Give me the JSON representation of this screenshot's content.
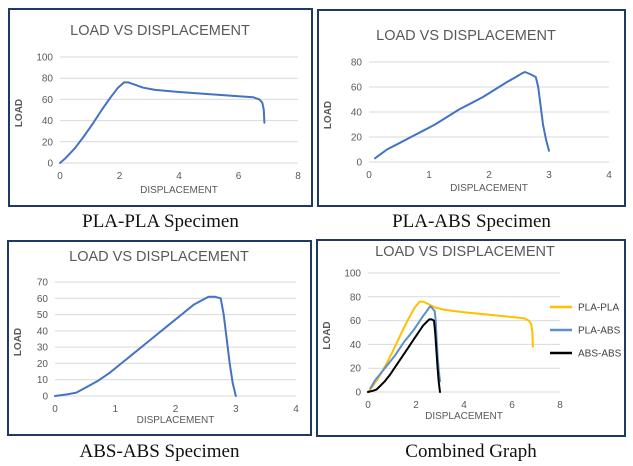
{
  "chart_data": [
    {
      "type": "line",
      "title": "LOAD VS DISPLACEMENT",
      "xlabel": "DISPLACEMENT",
      "ylabel": "LOAD",
      "xlim": [
        0,
        8
      ],
      "ylim": [
        0,
        100
      ],
      "xticks": [
        0,
        2,
        4,
        6,
        8
      ],
      "yticks": [
        0,
        20,
        40,
        60,
        80,
        100
      ],
      "grid": true,
      "caption": "PLA-PLA Specimen",
      "series": [
        {
          "color": "#4472c4",
          "x": [
            0,
            0.2,
            0.5,
            0.8,
            1.1,
            1.4,
            1.7,
            1.95,
            2.15,
            2.3,
            2.5,
            2.8,
            3.2,
            4,
            5,
            6,
            6.5,
            6.7,
            6.8,
            6.85,
            6.87
          ],
          "y": [
            0,
            5,
            14,
            25,
            37,
            50,
            62,
            71,
            76,
            76,
            74,
            71,
            69,
            67,
            65,
            63,
            62,
            60,
            57,
            50,
            38
          ]
        }
      ]
    },
    {
      "type": "line",
      "title": "LOAD VS DISPLACEMENT",
      "xlabel": "DISPLACEMENT",
      "ylabel": "LOAD",
      "xlim": [
        0,
        4
      ],
      "ylim": [
        0,
        80
      ],
      "xticks": [
        0,
        1,
        2,
        3,
        4
      ],
      "yticks": [
        0,
        20,
        40,
        60,
        80
      ],
      "grid": true,
      "caption": "PLA-ABS Specimen",
      "series": [
        {
          "color": "#4472c4",
          "x": [
            0.1,
            0.3,
            0.5,
            0.7,
            0.9,
            1.1,
            1.3,
            1.5,
            1.7,
            1.9,
            2.1,
            2.3,
            2.45,
            2.55,
            2.6,
            2.7,
            2.78,
            2.82,
            2.86,
            2.9,
            2.95,
            3.0
          ],
          "y": [
            3,
            10,
            15,
            20,
            25,
            30,
            36,
            42,
            47,
            52,
            58,
            64,
            68,
            71,
            72,
            70,
            68,
            60,
            45,
            30,
            18,
            9
          ]
        }
      ]
    },
    {
      "type": "line",
      "title": "LOAD VS DISPLACEMENT",
      "xlabel": "DISPLACEMENT",
      "ylabel": "LOAD",
      "xlim": [
        0,
        4
      ],
      "ylim": [
        0,
        70
      ],
      "xticks": [
        0,
        1,
        2,
        3,
        4
      ],
      "yticks": [
        0,
        10,
        20,
        30,
        40,
        50,
        60,
        70
      ],
      "grid": true,
      "caption": "ABS-ABS Specimen",
      "series": [
        {
          "color": "#4472c4",
          "x": [
            0,
            0.2,
            0.35,
            0.5,
            0.7,
            0.9,
            1.1,
            1.3,
            1.5,
            1.7,
            1.9,
            2.1,
            2.3,
            2.45,
            2.55,
            2.65,
            2.75,
            2.8,
            2.85,
            2.9,
            2.95,
            3.0
          ],
          "y": [
            0,
            1,
            2,
            5,
            9,
            14,
            20,
            26,
            32,
            38,
            44,
            50,
            56,
            59,
            61,
            61,
            60,
            50,
            35,
            20,
            8,
            0
          ]
        }
      ]
    },
    {
      "type": "line",
      "title": "LOAD VS DISPLACEMENT",
      "xlabel": "DISPLACEMENT",
      "ylabel": "LOAD",
      "xlim": [
        0,
        8
      ],
      "ylim": [
        0,
        100
      ],
      "xticks": [
        0,
        2,
        4,
        6,
        8
      ],
      "yticks": [
        0,
        20,
        40,
        60,
        80,
        100
      ],
      "grid": true,
      "legend": "right",
      "caption": "Combined Graph",
      "series": [
        {
          "name": "PLA-PLA",
          "color": "#ffc000",
          "x": [
            0,
            0.2,
            0.5,
            0.8,
            1.1,
            1.4,
            1.7,
            1.95,
            2.15,
            2.3,
            2.5,
            2.8,
            3.2,
            4,
            5,
            6,
            6.5,
            6.7,
            6.8,
            6.85,
            6.87
          ],
          "y": [
            0,
            5,
            14,
            25,
            37,
            50,
            62,
            71,
            76,
            76,
            74,
            71,
            69,
            67,
            65,
            63,
            62,
            60,
            57,
            50,
            38
          ]
        },
        {
          "name": "PLA-ABS",
          "color": "#5b8fd0",
          "x": [
            0.1,
            0.3,
            0.5,
            0.7,
            0.9,
            1.1,
            1.3,
            1.5,
            1.7,
            1.9,
            2.1,
            2.3,
            2.45,
            2.55,
            2.6,
            2.7,
            2.78,
            2.82,
            2.86,
            2.9,
            2.95,
            3.0
          ],
          "y": [
            3,
            10,
            15,
            20,
            25,
            30,
            36,
            42,
            47,
            52,
            58,
            64,
            68,
            71,
            72,
            70,
            68,
            60,
            45,
            30,
            18,
            9
          ]
        },
        {
          "name": "ABS-ABS",
          "color": "#000000",
          "x": [
            0,
            0.2,
            0.35,
            0.5,
            0.7,
            0.9,
            1.1,
            1.3,
            1.5,
            1.7,
            1.9,
            2.1,
            2.3,
            2.45,
            2.55,
            2.65,
            2.75,
            2.8,
            2.85,
            2.9,
            2.95,
            3.0
          ],
          "y": [
            0,
            1,
            2,
            5,
            9,
            14,
            20,
            26,
            32,
            38,
            44,
            50,
            56,
            59,
            61,
            61,
            60,
            50,
            35,
            20,
            8,
            0
          ]
        }
      ]
    }
  ]
}
